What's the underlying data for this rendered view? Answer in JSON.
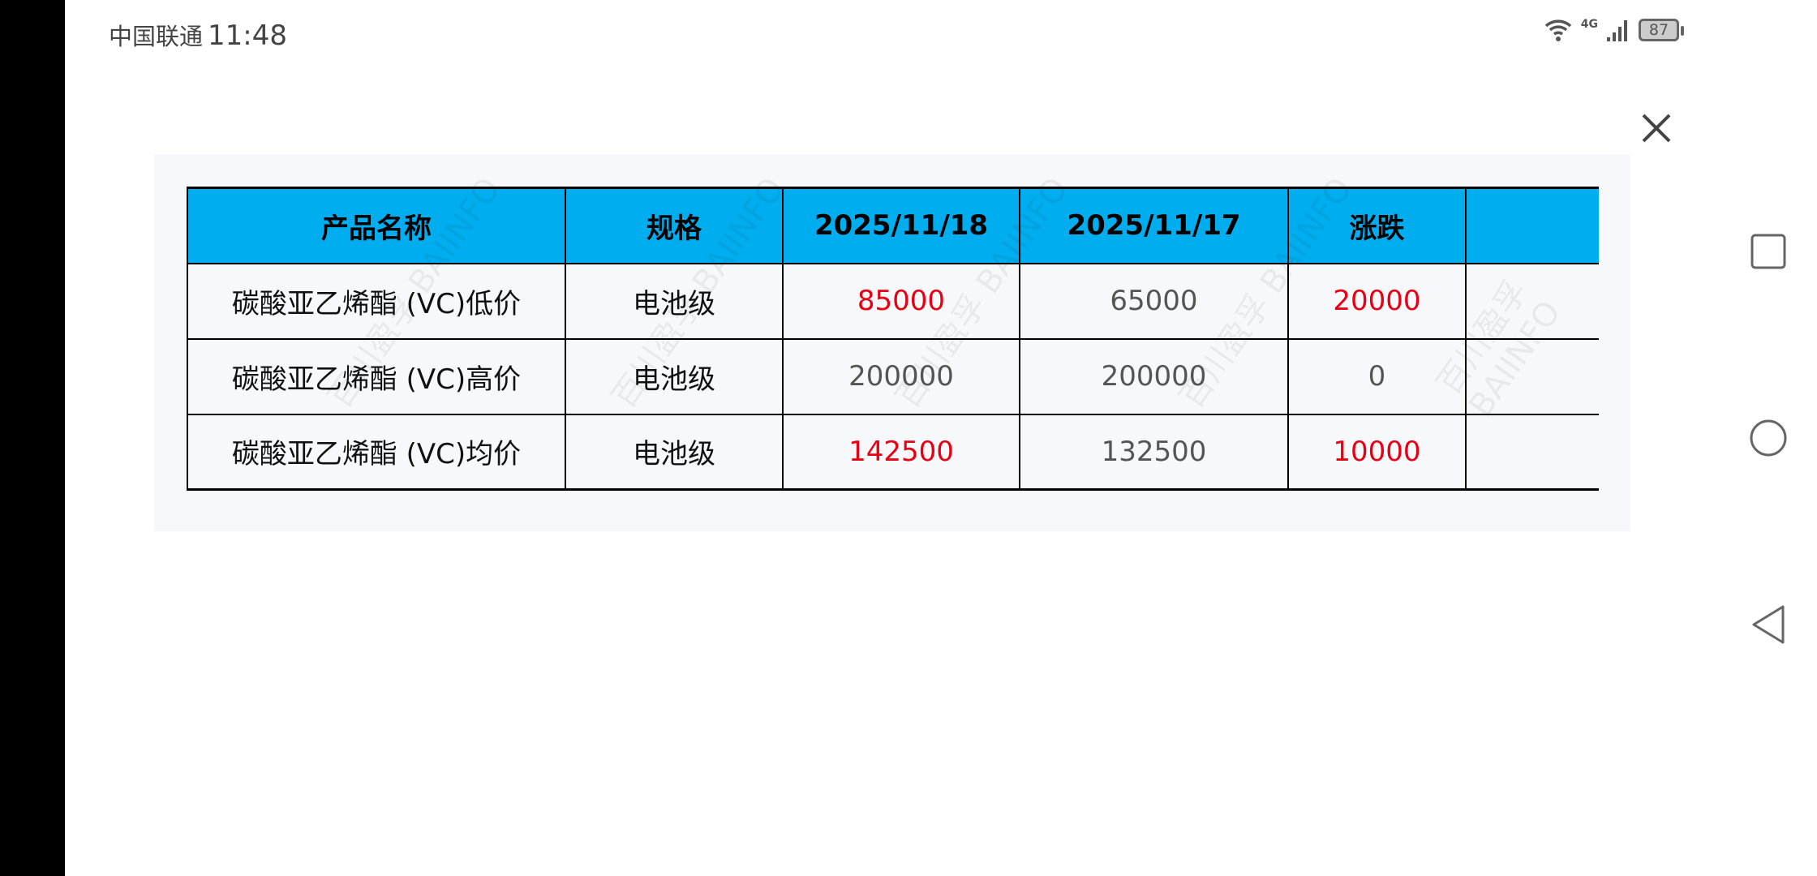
{
  "status_bar": {
    "carrier": "中国联通",
    "time": "11:48",
    "network": "4G",
    "battery": "87"
  },
  "table": {
    "headers": [
      "产品名称",
      "规格",
      "2025/11/18",
      "2025/11/17",
      "涨跌",
      ""
    ],
    "rows": [
      {
        "name": "碳酸亚乙烯酯 (VC)低价",
        "spec": "电池级",
        "d1": "85000",
        "d2": "65000",
        "change": "20000"
      },
      {
        "name": "碳酸亚乙烯酯 (VC)高价",
        "spec": "电池级",
        "d1": "200000",
        "d2": "200000",
        "change": "0"
      },
      {
        "name": "碳酸亚乙烯酯 (VC)均价",
        "spec": "电池级",
        "d1": "142500",
        "d2": "132500",
        "change": "10000"
      }
    ],
    "watermark": "百川盈孚 BAIINFO"
  },
  "colors": {
    "header_bg": "#00aeef",
    "up": "#e60012",
    "neutral": "#555555"
  }
}
